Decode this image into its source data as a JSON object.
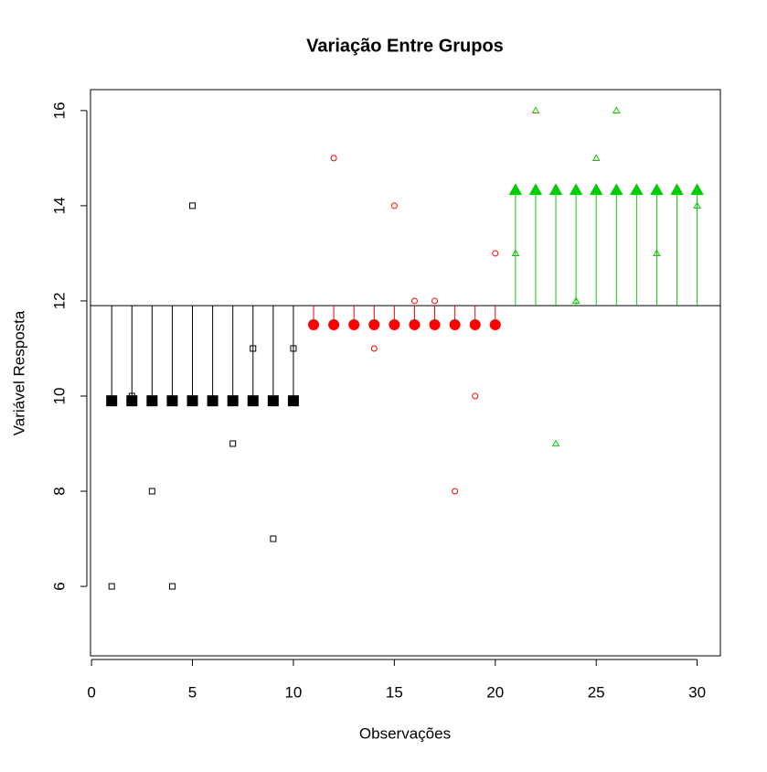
{
  "chart_data": {
    "type": "scatter",
    "title": "Variação Entre Grupos",
    "x_label": "Observações",
    "y_label": "Variável Resposta",
    "xlim": [
      -0.05,
      31.15
    ],
    "ylim": [
      4.54,
      16.44
    ],
    "xticks": [
      0,
      5,
      10,
      15,
      20,
      25,
      30
    ],
    "yticks": [
      6,
      8,
      10,
      12,
      14,
      16
    ],
    "grand_mean": 11.9,
    "series": [
      {
        "color": "#000000",
        "marker": "square",
        "x": [
          1,
          2,
          3,
          4,
          5,
          6,
          7,
          8,
          9,
          10
        ],
        "values": [
          6,
          10,
          8,
          6,
          14,
          null,
          9,
          11,
          7,
          11
        ]
      },
      {
        "color": "#ff0000",
        "marker": "circle",
        "x": [
          11,
          12,
          13,
          14,
          15,
          16,
          17,
          18,
          19,
          20
        ],
        "values": [
          null,
          15,
          null,
          11,
          14,
          12,
          12,
          8,
          10,
          13
        ]
      },
      {
        "color": "#00cd00",
        "marker": "triangle",
        "x": [
          21,
          22,
          23,
          24,
          25,
          26,
          27,
          28,
          29,
          30
        ],
        "values": [
          13,
          16,
          9,
          12,
          15,
          16,
          null,
          13,
          null,
          14
        ]
      }
    ],
    "group_means": [
      {
        "color": "#000000",
        "marker": "square",
        "x": [
          1,
          2,
          3,
          4,
          5,
          6,
          7,
          8,
          9,
          10
        ],
        "values": [
          9.9,
          9.9,
          9.9,
          9.9,
          9.9,
          9.9,
          9.9,
          9.9,
          9.9,
          9.9
        ]
      },
      {
        "color": "#ff0000",
        "marker": "circle",
        "x": [
          11,
          12,
          13,
          14,
          15,
          16,
          17,
          18,
          19,
          20
        ],
        "values": [
          11.5,
          11.5,
          11.5,
          11.5,
          11.5,
          11.5,
          11.5,
          11.5,
          11.5,
          11.5
        ]
      },
      {
        "color": "#00cd00",
        "marker": "triangle",
        "x": [
          21,
          22,
          23,
          24,
          25,
          26,
          27,
          28,
          29,
          30
        ],
        "values": [
          14.33,
          14.33,
          14.33,
          14.33,
          14.33,
          14.33,
          14.33,
          14.33,
          14.33,
          14.33
        ]
      }
    ]
  }
}
